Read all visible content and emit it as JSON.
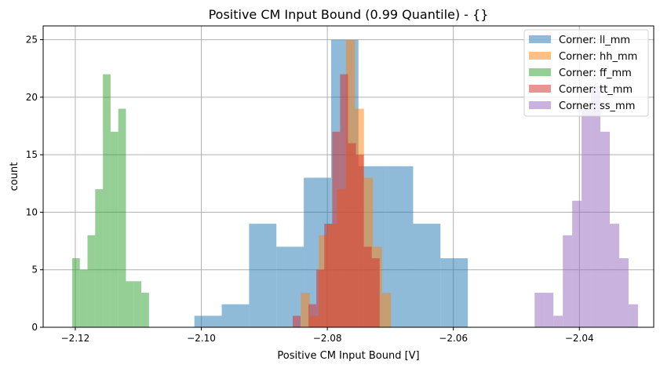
{
  "chart_data": {
    "type": "histogram",
    "title": "Positive CM Input Bound (0.99 Quantile) - {}",
    "xlabel": "Positive CM Input Bound [V]",
    "ylabel": "count",
    "xlim": [
      -2.1251,
      -2.0282
    ],
    "ylim": [
      0,
      26.2
    ],
    "xticks": [
      -2.12,
      -2.1,
      -2.08,
      -2.06,
      -2.04
    ],
    "xtick_labels": [
      "−2.12",
      "−2.10",
      "−2.08",
      "−2.06",
      "−2.04"
    ],
    "yticks": [
      0,
      5,
      10,
      15,
      20,
      25
    ],
    "ytick_labels": [
      "0",
      "5",
      "10",
      "15",
      "20",
      "25"
    ],
    "grid": true,
    "legend_placement": "top-right",
    "alpha": 0.5,
    "series": [
      {
        "name": "Corner: ll_mm",
        "color": "#1f77b4",
        "bin_start": -2.1011,
        "bin_end": -2.0577,
        "counts": [
          1,
          2,
          9,
          7,
          13,
          25,
          14,
          14,
          9,
          6
        ]
      },
      {
        "name": "Corner: hh_mm",
        "color": "#ff7f0e",
        "bin_start": -2.0842,
        "bin_end": -2.0699,
        "counts": [
          3,
          1,
          8,
          9,
          12,
          25,
          19,
          13,
          7,
          3
        ]
      },
      {
        "name": "Corner: ff_mm",
        "color": "#2ca02c",
        "bin_start": -2.1205,
        "bin_end": -2.1083,
        "counts": [
          6,
          5,
          8,
          12,
          22,
          17,
          19,
          4,
          4,
          3
        ]
      },
      {
        "name": "Corner: tt_mm",
        "color": "#d62728",
        "bin_start": -2.0855,
        "bin_end": -2.0717,
        "counts": [
          1,
          0,
          2,
          5,
          9,
          17,
          22,
          16,
          15,
          7,
          6
        ]
      },
      {
        "name": "Corner: ss_mm",
        "color": "#9467bd",
        "bin_start": -2.0471,
        "bin_end": -2.0307,
        "counts": [
          3,
          3,
          1,
          8,
          11,
          19,
          21,
          17,
          9,
          6,
          2
        ]
      }
    ]
  }
}
